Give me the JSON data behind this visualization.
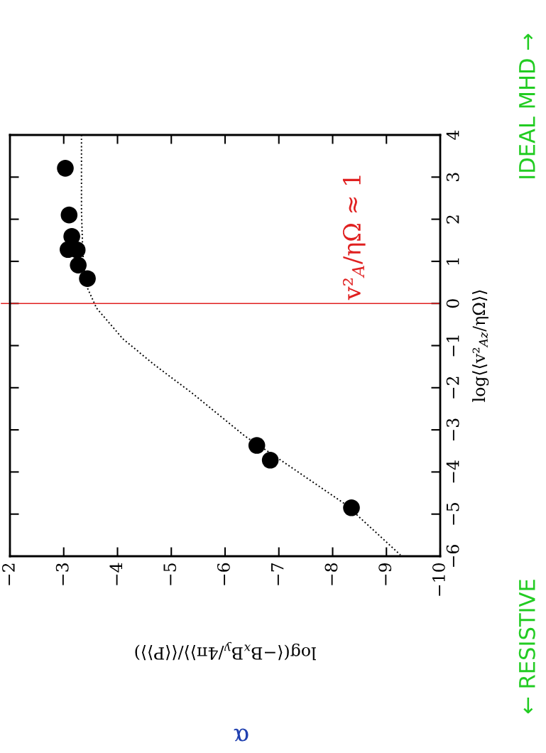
{
  "chart_data": {
    "type": "scatter",
    "xlabel": "log(⟨−B$_{x}$B$_{y}$/4π⟩⟩/⟨⟨P⟩⟩)",
    "ylabel": "log⟨⟨v²$_{Az}$/ηΩ⟩⟩",
    "annotations": [
      "α",
      "← RESISTIVE",
      "IDEAL MHD →"
    ],
    "ylim": [
      -6,
      4
    ],
    "yticks": [
      {
        "value": -6,
        "label": "−6"
      },
      {
        "value": -5,
        "label": "−5"
      },
      {
        "value": -4,
        "label": "−4"
      },
      {
        "value": -3,
        "label": "−3"
      },
      {
        "value": -2,
        "label": "−2"
      },
      {
        "value": -1,
        "label": "−1"
      },
      0,
      1,
      2,
      3,
      4
    ],
    "xlim": [
      -2,
      -10
    ],
    "xticks": [
      {
        "value": -2,
        "label": "−2"
      },
      {
        "value": -3,
        "label": "−3"
      },
      {
        "value": -4,
        "label": "−4"
      },
      {
        "value": -5,
        "label": "−5"
      },
      {
        "value": -6,
        "label": "−6"
      },
      {
        "value": -7,
        "label": "−7"
      },
      {
        "value": -8,
        "label": "−8"
      },
      {
        "value": -9,
        "label": "−9"
      },
      {
        "value": -10,
        "label": "−10"
      }
    ],
    "series": [
      {
        "color": "#000000",
        "marker": "circle",
        "x": [
          -3.03,
          -3.1,
          -3.15,
          -3.08,
          -3.25,
          -3.27,
          -3.44,
          -6.59,
          -6.84,
          -8.35
        ],
        "values": [
          3.21,
          2.1,
          1.59,
          1.28,
          1.27,
          0.91,
          0.59,
          -3.37,
          -3.72,
          -4.85
        ]
      },
      {
        "type": "line",
        "color": "#000000",
        "marker": "none",
        "line_style": "dotted",
        "x": [
          -3.33,
          -3.33,
          -3.35,
          -3.37,
          -3.44,
          -3.61,
          -4.1,
          -4.69,
          -5.42,
          -6.37,
          -6.83,
          -8.24,
          -9.26
        ],
        "values": [
          4,
          2.2,
          1.39,
          0.9,
          0.37,
          -0.11,
          -0.84,
          -1.46,
          -2.16,
          -3.15,
          -3.54,
          -4.77,
          -5.97
        ]
      }
    ],
    "ref_lines": [
      {
        "axis": "y",
        "value": 0,
        "label": "v²$_{A}$/ηΩ ≈ 1",
        "color": "#e02020",
        "line_style": "solid"
      }
    ],
    "grid": false,
    "legend": false
  }
}
